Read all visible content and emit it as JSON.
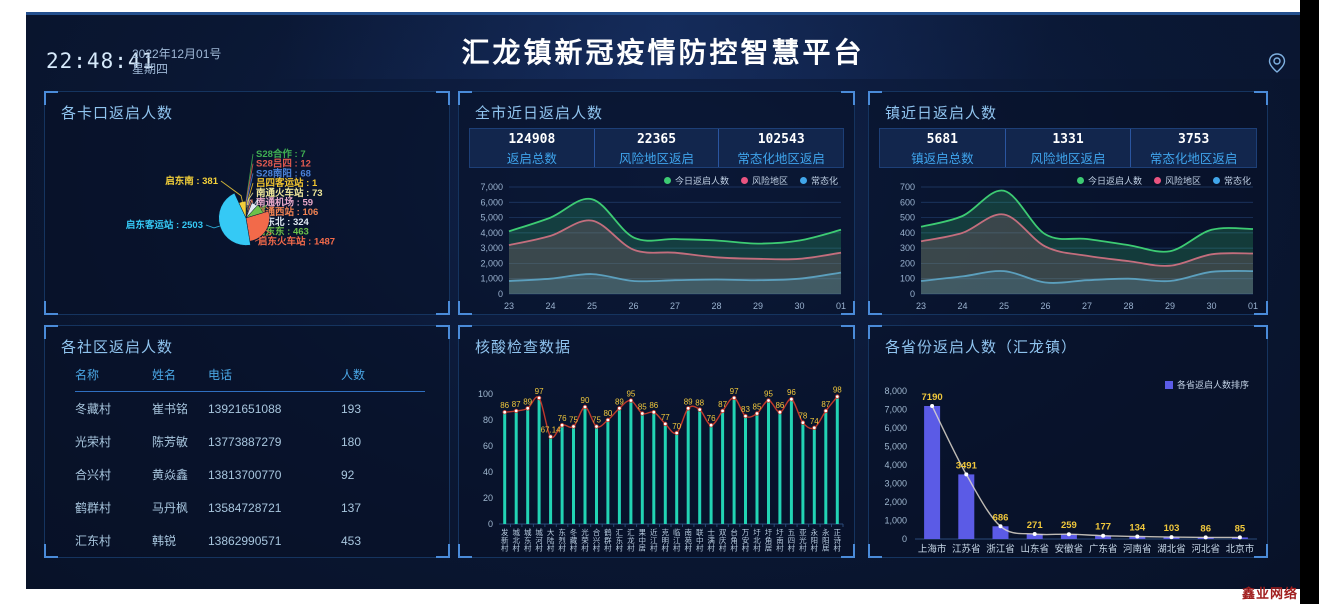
{
  "header": {
    "title": "汇龙镇新冠疫情防控智慧平台",
    "time": "22:48:41",
    "date": "2022年12月01号",
    "weekday": "星期四"
  },
  "watermark": "鑫业网络",
  "panels": {
    "checkpoints": {
      "title": "各卡口返启人数",
      "chart_data": {
        "type": "pie",
        "rose": true,
        "items": [
          {
            "name": "S28合作",
            "value": 7,
            "color": "#3fae52"
          },
          {
            "name": "S28吕四",
            "value": 12,
            "color": "#e05a50"
          },
          {
            "name": "S28南阳",
            "value": 68,
            "color": "#4a82d8"
          },
          {
            "name": "吕四客运站",
            "value": 1,
            "color": "#f2c52f"
          },
          {
            "name": "南通火车站",
            "value": 73,
            "color": "#efe79a"
          },
          {
            "name": "南通机场",
            "value": 59,
            "color": "#e8a8c8"
          },
          {
            "name": "南通西站",
            "value": 106,
            "color": "#ef8252"
          },
          {
            "name": "启东北",
            "value": 324,
            "color": "#dfe9f2"
          },
          {
            "name": "启东东",
            "value": 463,
            "color": "#6cc24a"
          },
          {
            "name": "启东火车站",
            "value": 1487,
            "color": "#f26a4a"
          },
          {
            "name": "启东客运站",
            "value": 2503,
            "color": "#35c9f5"
          },
          {
            "name": "启东南",
            "value": 381,
            "color": "#f2cf3a"
          }
        ]
      }
    },
    "city_recent": {
      "title": "全市近日返启人数",
      "stats": [
        {
          "value": "124908",
          "label": "返启总数"
        },
        {
          "value": "22365",
          "label": "风险地区返启"
        },
        {
          "value": "102543",
          "label": "常态化地区返启"
        }
      ],
      "chart_data": {
        "type": "area",
        "x": [
          "23",
          "24",
          "25",
          "26",
          "27",
          "28",
          "29",
          "30",
          "01"
        ],
        "ylim": [
          0,
          7000
        ],
        "ystep": 1000,
        "legend_position": "top-right",
        "series": [
          {
            "name": "今日返启人数",
            "color": "#3dcb73",
            "values": [
              4100,
              5000,
              6200,
              3700,
              3600,
              3500,
              3300,
              3500,
              4200
            ]
          },
          {
            "name": "风险地区",
            "color": "#ea5480",
            "values": [
              3200,
              3800,
              4800,
              2900,
              2700,
              2400,
              2300,
              2300,
              2700
            ]
          },
          {
            "name": "常态化",
            "color": "#41a6ea",
            "values": [
              850,
              1000,
              1300,
              850,
              900,
              950,
              900,
              1000,
              1400
            ]
          }
        ]
      }
    },
    "town_recent": {
      "title": "镇近日返启人数",
      "stats": [
        {
          "value": "5681",
          "label": "镇返启总数"
        },
        {
          "value": "1331",
          "label": "风险地区返启"
        },
        {
          "value": "3753",
          "label": "常态化地区返启"
        }
      ],
      "chart_data": {
        "type": "area",
        "x": [
          "23",
          "24",
          "25",
          "26",
          "27",
          "28",
          "29",
          "30",
          "01"
        ],
        "ylim": [
          0,
          700
        ],
        "ystep": 100,
        "legend_position": "top-right",
        "series": [
          {
            "name": "今日返启人数",
            "color": "#3dcb73",
            "values": [
              440,
              510,
              675,
              390,
              360,
              320,
              280,
              420,
              425
            ]
          },
          {
            "name": "风险地区",
            "color": "#ea5480",
            "values": [
              345,
              400,
              520,
              310,
              250,
              215,
              185,
              260,
              265
            ]
          },
          {
            "name": "常态化",
            "color": "#41a6ea",
            "values": [
              85,
              115,
              150,
              75,
              90,
              100,
              85,
              145,
              150
            ]
          }
        ]
      }
    },
    "communities": {
      "title": "各社区返启人数",
      "table": {
        "headers": [
          "名称",
          "姓名",
          "电话",
          "人数"
        ],
        "rows": [
          [
            "冬藏村",
            "崔书铭",
            "13921651088",
            "193"
          ],
          [
            "光荣村",
            "陈芳敏",
            "13773887279",
            "180"
          ],
          [
            "合兴村",
            "黄焱鑫",
            "13813700770",
            "92"
          ],
          [
            "鹤群村",
            "马丹枫",
            "13584728721",
            "137"
          ],
          [
            "汇东村",
            "韩锐",
            "13862990571",
            "453"
          ]
        ]
      }
    },
    "nucleic": {
      "title": "核酸检查数据",
      "chart_data": {
        "type": "bar+line",
        "ylim": [
          0,
          100
        ],
        "ystep": 20,
        "bar_color": "#22d3b4",
        "line_color": "#c0392b",
        "label_color": "#f0c83c",
        "categories": [
          "发新村",
          "城北村",
          "城东村",
          "城河村",
          "大陆村",
          "东烈村",
          "冬藏村",
          "光荣村",
          "合兴村",
          "鹤群村",
          "汇东村",
          "汇龙村",
          "果中居",
          "近江村",
          "克明村",
          "临江村",
          "南苑村",
          "联中村",
          "士满村",
          "双庆村",
          "台角村",
          "万安村",
          "圩北村",
          "圩角居",
          "圩南村",
          "五四村",
          "亚光村",
          "永阳村",
          "永阳居",
          "正诗村"
        ],
        "values": [
          86,
          87,
          89,
          97,
          67.14,
          76,
          75,
          90,
          75,
          80,
          89,
          95,
          85,
          86,
          77,
          70,
          89,
          88,
          76,
          87,
          97,
          83,
          85,
          95,
          86,
          96,
          78,
          74,
          87,
          98
        ]
      }
    },
    "provinces": {
      "title": "各省份返启人数（汇龙镇）",
      "legend": "各省返启人数排序",
      "chart_data": {
        "type": "bar+line",
        "ylim": [
          0,
          8000
        ],
        "ystep": 1000,
        "bar_color": "#5b5be6",
        "line_color": "#ded8cc",
        "label_color": "#f0c83c",
        "categories": [
          "上海市",
          "江苏省",
          "浙江省",
          "山东省",
          "安徽省",
          "广东省",
          "河南省",
          "湖北省",
          "河北省",
          "北京市"
        ],
        "values": [
          7190,
          3491,
          686,
          271,
          259,
          177,
          134,
          103,
          86,
          85
        ]
      }
    }
  }
}
